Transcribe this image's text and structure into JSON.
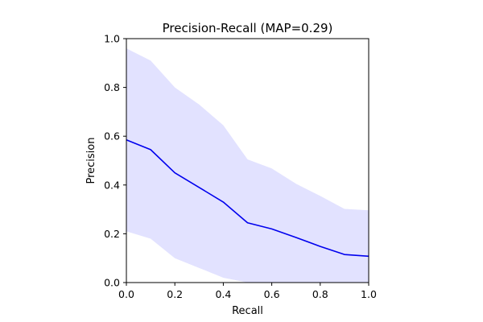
{
  "chart_data": {
    "type": "area",
    "title": "Precision-Recall (MAP=0.29)",
    "xlabel": "Recall",
    "ylabel": "Precision",
    "xlim": [
      0,
      1
    ],
    "ylim": [
      0,
      1
    ],
    "grid": false,
    "x_ticks": [
      "0.0",
      "0.2",
      "0.4",
      "0.6",
      "0.8",
      "1.0"
    ],
    "y_ticks": [
      "0.0",
      "0.2",
      "0.4",
      "0.6",
      "0.8",
      "1.0"
    ],
    "x": [
      0.0,
      0.1,
      0.2,
      0.3,
      0.4,
      0.5,
      0.6,
      0.7,
      0.8,
      0.9,
      1.0
    ],
    "series": [
      {
        "values": [
          0.585,
          0.545,
          0.45,
          0.39,
          0.33,
          0.245,
          0.22,
          0.185,
          0.148,
          0.115,
          0.108
        ],
        "color": "#0000ee"
      }
    ],
    "band": {
      "upper": [
        0.96,
        0.91,
        0.8,
        0.73,
        0.645,
        0.505,
        0.468,
        0.405,
        0.355,
        0.302,
        0.296
      ],
      "lower": [
        0.21,
        0.18,
        0.1,
        0.06,
        0.02,
        0.0,
        0.0,
        0.0,
        0.0,
        0.0,
        0.0
      ],
      "color": "#e2e2ff"
    }
  }
}
